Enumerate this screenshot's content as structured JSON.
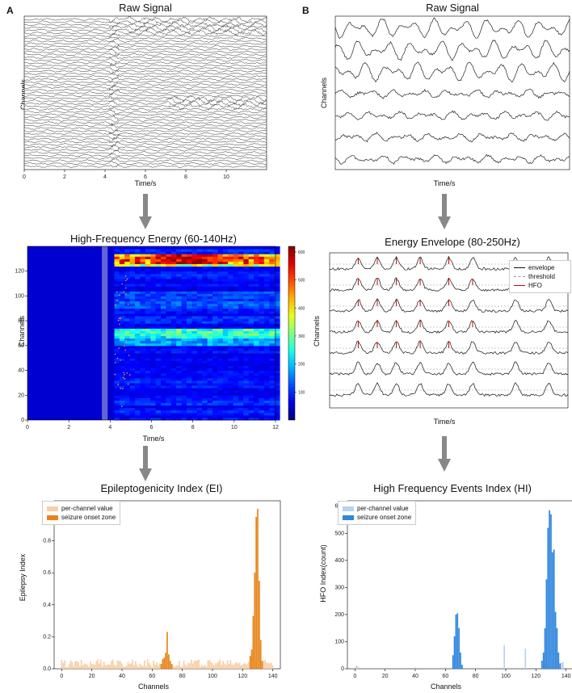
{
  "labels": {
    "panel_a": "A",
    "panel_b": "B"
  },
  "colors": {
    "ei_light": "#f8cfa8",
    "ei_dark": "#e8841a",
    "hi_light": "#b7d3f2",
    "hi_dark": "#2e86de",
    "arrow": "#888888"
  },
  "chart_data": [
    {
      "id": "a-raw",
      "type": "line",
      "title": "Raw Signal",
      "xlabel": "Time/s",
      "ylabel": "Channels",
      "xlim": [
        0,
        12
      ],
      "xticks": [
        0,
        2,
        4,
        6,
        8,
        10
      ]
    },
    {
      "id": "b-raw",
      "type": "line",
      "title": "Raw Signal",
      "xlabel": "Time/s",
      "ylabel": "Channels"
    },
    {
      "id": "a-energy",
      "type": "heatmap",
      "title": "High-Frequency Energy (60-140Hz)",
      "xlabel": "Time/s",
      "ylabel": "Channels",
      "xlim": [
        0,
        12
      ],
      "ylim": [
        0,
        140
      ],
      "xticks": [
        0,
        2,
        4,
        6,
        8,
        10,
        12
      ],
      "yticks": [
        0,
        20,
        40,
        60,
        80,
        100,
        120
      ],
      "colorbar_ticks": [
        100,
        200,
        300,
        400,
        500,
        600
      ],
      "colormap": "jet"
    },
    {
      "id": "b-envelope",
      "type": "line",
      "title": "Energy Envelope (80-250Hz)",
      "xlabel": "Time/s",
      "ylabel": "Channels",
      "legend": [
        "envelope",
        "threshold",
        "HFO"
      ],
      "legend_position": "top-right"
    },
    {
      "id": "a-ei",
      "type": "bar",
      "title": "Epileptogenicity Index (EI)",
      "xlabel": "Channels",
      "ylabel": "Epilepsy Index",
      "xlim": [
        -5,
        145
      ],
      "ylim": [
        0,
        1.05
      ],
      "xticks": [
        0,
        20,
        40,
        60,
        80,
        100,
        120,
        140
      ],
      "yticks": [
        0.0,
        0.2,
        0.4,
        0.6,
        0.8,
        1.0
      ],
      "legend": [
        "per-channel value",
        "seizure onset zone"
      ],
      "legend_position": "top-left",
      "soz_channels": [
        66,
        67,
        68,
        69,
        70,
        71,
        72,
        73,
        125,
        126,
        127,
        128,
        129,
        130,
        131,
        132,
        133
      ],
      "soz_values": [
        0.03,
        0.06,
        0.07,
        0.1,
        0.23,
        0.09,
        0.05,
        0.03,
        0.08,
        0.12,
        0.33,
        0.6,
        0.95,
        1.0,
        0.55,
        0.18,
        0.05
      ],
      "baseline_range": [
        0.01,
        0.06
      ]
    },
    {
      "id": "b-hi",
      "type": "bar",
      "title": "High Frequency Events Index (HI)",
      "xlabel": "Channels",
      "ylabel": "HFO Index(count)",
      "xlim": [
        -5,
        145
      ],
      "ylim": [
        0,
        620
      ],
      "xticks": [
        0,
        20,
        40,
        60,
        80,
        100,
        120,
        140
      ],
      "yticks": [
        0,
        100,
        200,
        300,
        400,
        500,
        600
      ],
      "legend": [
        "per-channel value",
        "seizure onset zone"
      ],
      "legend_position": "top-left",
      "per_channel": {
        "x": [
          1,
          2,
          20,
          40,
          60,
          80,
          99,
          113,
          126,
          137,
          138
        ],
        "y": [
          12,
          8,
          4,
          5,
          6,
          4,
          88,
          75,
          18,
          22,
          25
        ]
      },
      "soz_channels": [
        65,
        66,
        67,
        68,
        69,
        70,
        71,
        124,
        125,
        126,
        127,
        128,
        129,
        130,
        131,
        132,
        133,
        134,
        135,
        136
      ],
      "soz_values": [
        50,
        120,
        200,
        205,
        150,
        60,
        15,
        30,
        60,
        150,
        330,
        520,
        585,
        570,
        430,
        440,
        210,
        150,
        60,
        20
      ]
    }
  ]
}
